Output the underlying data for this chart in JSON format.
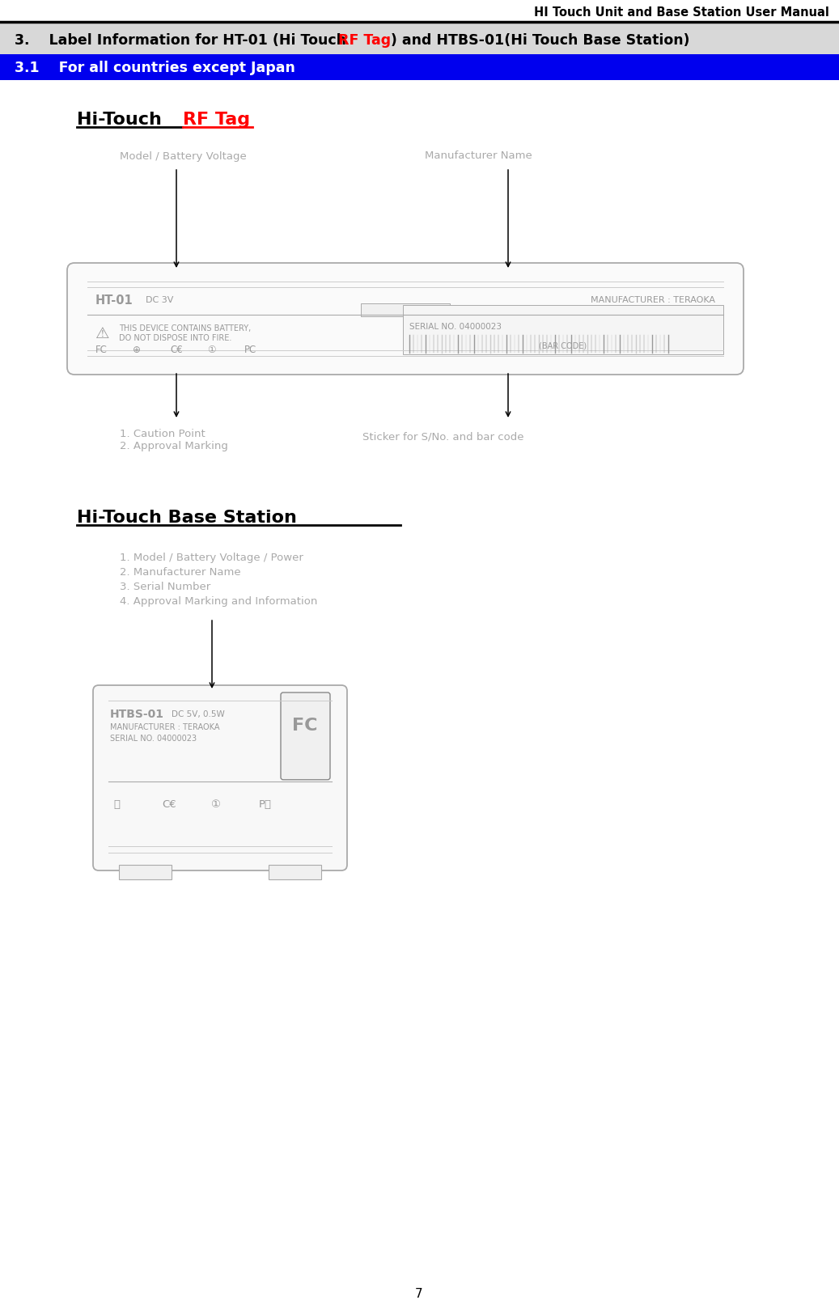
{
  "header_title": "HI Touch Unit and Base Station User Manual",
  "sec3_pre": "3.    Label Information for HT-01 (Hi Touch ",
  "sec3_rf": "RF Tag",
  "sec3_post": ") and HTBS-01(Hi Touch Base Station)",
  "sec31_text": "3.1    For all countries except Japan",
  "rft_black": "Hi-Touch ",
  "rft_red": "RF Tag",
  "bs_title": "Hi-Touch Base Station",
  "lbl_model": "Model / Battery Voltage",
  "lbl_mfr": "Manufacturer Name",
  "lbl_caution1": "1. Caution Point",
  "lbl_caution2": "2. Approval Marking",
  "lbl_sticker": "Sticker for S/No. and bar code",
  "ht01_bold": "HT-01",
  "ht01_dc": "DC 3V",
  "ht01_mfr": "MANUFACTURER : TERAOKA",
  "ht01_warn1": "THIS DEVICE CONTAINS BATTERY,",
  "ht01_warn2": "DO NOT DISPOSE INTO FIRE.",
  "ht01_serial": "SERIAL NO. 04000023",
  "ht01_barcode": "(BAR CODE)",
  "bs_items": [
    "1. Model / Battery Voltage / Power",
    "2. Manufacturer Name",
    "3. Serial Number",
    "4. Approval Marking and Information"
  ],
  "htbs_bold": "HTBS-01",
  "htbs_dc": "DC 5V, 0.5W",
  "htbs_mfr": "MANUFACTURER : TERAOKA",
  "htbs_serial": "SERIAL NO. 04000023",
  "page_num": "7",
  "bg": "#ffffff",
  "gray_bar": "#d8d8d8",
  "blue_bar": "#0000ee",
  "blue_bar_text": "#ffffff",
  "red": "#ff0000",
  "black": "#000000",
  "device_gray": "#999999",
  "label_gray": "#aaaaaa",
  "light_gray": "#cccccc",
  "DL": 92,
  "DR": 910,
  "DT": 335,
  "DB": 455,
  "BSL": 122,
  "BSR": 422,
  "BST": 855,
  "BSB": 1070
}
